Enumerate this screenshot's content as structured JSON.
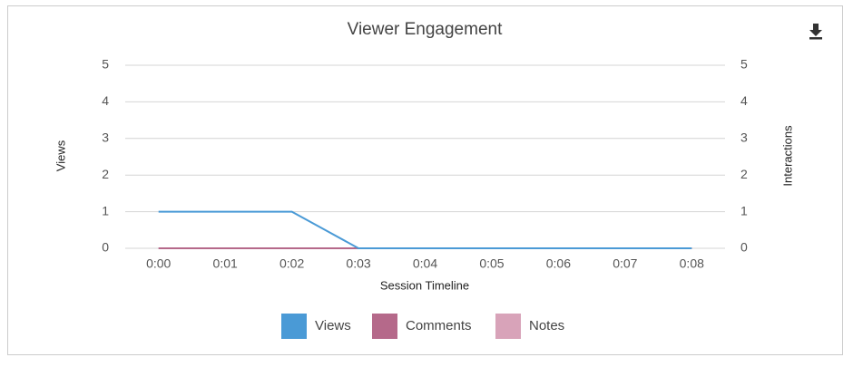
{
  "chart_data": {
    "type": "line",
    "title": "Viewer Engagement",
    "x_label": "Session Timeline",
    "y_label": "Views",
    "y2_label": "Interactions",
    "categories": [
      "0:00",
      "0:01",
      "0:02",
      "0:03",
      "0:04",
      "0:05",
      "0:06",
      "0:07",
      "0:08"
    ],
    "series": [
      {
        "name": "Views",
        "color": "#4a9ad6",
        "values": [
          1,
          1,
          1,
          0,
          0,
          0,
          0,
          0,
          0
        ]
      },
      {
        "name": "Comments",
        "color": "#b5698a",
        "axis": "y2",
        "values": [
          0,
          0,
          0,
          0,
          0,
          0,
          0,
          0,
          0
        ]
      },
      {
        "name": "Notes",
        "color": "#d8a3b9",
        "axis": "y2",
        "values": [
          0,
          0,
          0,
          0,
          0,
          0,
          0,
          0,
          0
        ]
      }
    ],
    "ylim": [
      0,
      5
    ],
    "yticks": [
      0,
      1,
      2,
      3,
      4,
      5
    ],
    "y2lim": [
      0,
      5
    ],
    "y2ticks": [
      0,
      1,
      2,
      3,
      4,
      5
    ],
    "grid": true,
    "legend": "bottom"
  }
}
